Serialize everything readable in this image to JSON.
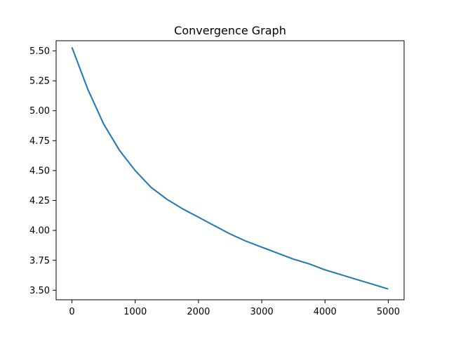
{
  "chart_data": {
    "type": "line",
    "title": "Convergence Graph",
    "xlabel": "",
    "ylabel": "",
    "xlim": [
      -250,
      5250
    ],
    "ylim": [
      3.42,
      5.585
    ],
    "x_ticks": [
      0,
      1000,
      2000,
      3000,
      4000,
      5000
    ],
    "x_tick_labels": [
      "0",
      "1000",
      "2000",
      "3000",
      "4000",
      "5000"
    ],
    "y_ticks": [
      3.5,
      3.75,
      4.0,
      4.25,
      4.5,
      4.75,
      5.0,
      5.25,
      5.5
    ],
    "y_tick_labels": [
      "3.50",
      "3.75",
      "4.00",
      "4.25",
      "4.50",
      "4.75",
      "5.00",
      "5.25",
      "5.50"
    ],
    "grid": false,
    "colors": {
      "series": "#1f77b4",
      "axes": "#000000",
      "background": "#ffffff"
    },
    "series": [
      {
        "x": [
          0,
          250,
          500,
          750,
          1000,
          1250,
          1500,
          1750,
          2000,
          2250,
          2500,
          2750,
          3000,
          3250,
          3500,
          3750,
          4000,
          4250,
          4500,
          4750,
          5000
        ],
        "y": [
          5.53,
          5.18,
          4.89,
          4.67,
          4.5,
          4.36,
          4.26,
          4.18,
          4.11,
          4.04,
          3.97,
          3.91,
          3.86,
          3.81,
          3.76,
          3.72,
          3.67,
          3.63,
          3.59,
          3.55,
          3.51
        ]
      }
    ]
  }
}
